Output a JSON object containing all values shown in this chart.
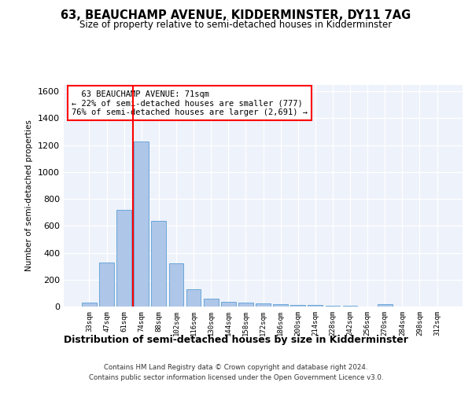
{
  "title_line1": "63, BEAUCHAMP AVENUE, KIDDERMINSTER, DY11 7AG",
  "title_line2": "Size of property relative to semi-detached houses in Kidderminster",
  "xlabel": "Distribution of semi-detached houses by size in Kidderminster",
  "ylabel": "Number of semi-detached properties",
  "categories": [
    "33sqm",
    "47sqm",
    "61sqm",
    "74sqm",
    "88sqm",
    "102sqm",
    "116sqm",
    "130sqm",
    "144sqm",
    "158sqm",
    "172sqm",
    "186sqm",
    "200sqm",
    "214sqm",
    "228sqm",
    "242sqm",
    "256sqm",
    "270sqm",
    "284sqm",
    "298sqm",
    "312sqm"
  ],
  "values": [
    32,
    325,
    718,
    1225,
    635,
    320,
    130,
    60,
    35,
    30,
    22,
    18,
    12,
    10,
    8,
    5,
    0,
    18,
    0,
    0,
    0
  ],
  "bar_color": "#aec6e8",
  "bar_edge_color": "#5a9fd4",
  "vline_color": "red",
  "annotation_line1": "  63 BEAUCHAMP AVENUE: 71sqm",
  "annotation_line2": "← 22% of semi-detached houses are smaller (777)",
  "annotation_line3": "76% of semi-detached houses are larger (2,691) →",
  "annotation_box_color": "white",
  "annotation_box_edge_color": "red",
  "ylim": [
    0,
    1650
  ],
  "yticks": [
    0,
    200,
    400,
    600,
    800,
    1000,
    1200,
    1400,
    1600
  ],
  "footer_line1": "Contains HM Land Registry data © Crown copyright and database right 2024.",
  "footer_line2": "Contains public sector information licensed under the Open Government Licence v3.0.",
  "bg_color": "#eef2fb",
  "grid_color": "#ffffff",
  "bar_width": 0.85
}
